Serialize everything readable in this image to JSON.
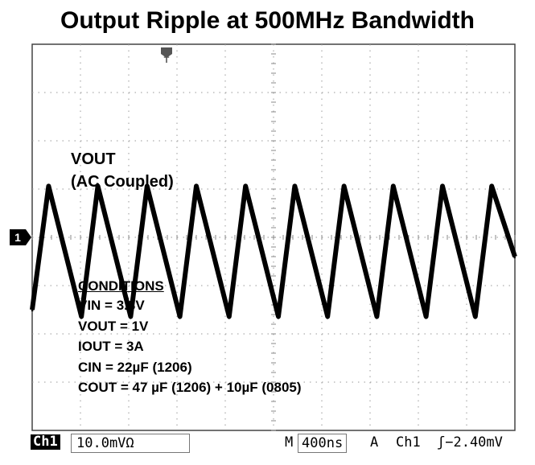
{
  "chart_data": {
    "type": "line",
    "title": "Output Ripple at 500MHz Bandwidth",
    "series": [
      {
        "name": "VOUT (AC Coupled)",
        "x_ns": [
          0,
          136,
          408,
          544,
          816,
          952,
          1224,
          1360,
          1632,
          1768,
          2040,
          2176,
          2448,
          2584,
          2856,
          2992,
          3264,
          3400,
          3672,
          3808,
          4000
        ],
        "y_mV": [
          -15,
          10.6,
          -16.4,
          10.6,
          -16.4,
          10.6,
          -16.4,
          10.6,
          -16.4,
          10.6,
          -16.4,
          10.6,
          -16.4,
          10.6,
          -16.4,
          10.6,
          -16.4,
          10.6,
          -16.4,
          10.6,
          -4
        ]
      }
    ],
    "xlim": [
      0,
      4000
    ],
    "ylim": [
      -40,
      40
    ],
    "grid": true,
    "divisions": {
      "x": 10,
      "y": 8
    }
  },
  "labels": {
    "wave_line1": "VOUT",
    "wave_line2": "(AC Coupled)",
    "trigger_marker": "T",
    "channel_marker": "1"
  },
  "conditions": {
    "heading": "CONDITIONS",
    "lines": [
      "VIN = 3.3V",
      "VOUT = 1V",
      "IOUT = 3A",
      "CIN = 22µF (1206)",
      "COUT = 47 µF (1206) + 10µF (0805)"
    ]
  },
  "status_bar": {
    "channel": "Ch1",
    "scale": "10.0mVΩ",
    "timebase_label": "M",
    "timebase": "400ns",
    "acq": "A",
    "trigger_channel": "Ch1",
    "trigger": "ʃ−2.40mV"
  }
}
